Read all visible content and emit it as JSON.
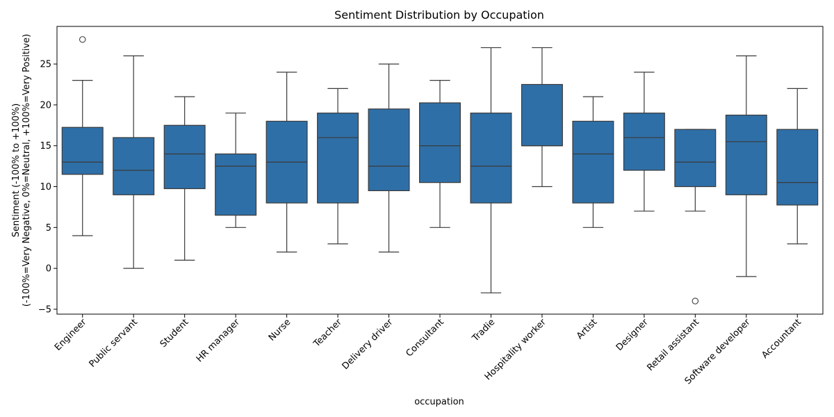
{
  "chart_data": {
    "type": "box",
    "title": "Sentiment Distribution by Occupation",
    "xlabel": "occupation",
    "ylabel_line1": "Sentiment (-100% to +100%)",
    "ylabel_line2": "(-100%=Very Negative, 0%=Neutral, +100%=Very Positive)",
    "ylim": [
      -5.6,
      29.6
    ],
    "yticks": [
      -5,
      0,
      5,
      10,
      15,
      20,
      25
    ],
    "grid": false,
    "box_color": "#2f6fa7",
    "line_color": "#3a3a3a",
    "categories": [
      "Engineer",
      "Public servant",
      "Student",
      "HR manager",
      "Nurse",
      "Teacher",
      "Delivery driver",
      "Consultant",
      "Tradie",
      "Hospitality worker",
      "Artist",
      "Designer",
      "Retail assistant",
      "Software developer",
      "Accountant"
    ],
    "boxes": [
      {
        "category": "Engineer",
        "whislo": 4,
        "q1": 11.5,
        "med": 13,
        "q3": 17.25,
        "whishi": 23,
        "fliers": [
          28
        ]
      },
      {
        "category": "Public servant",
        "whislo": 0,
        "q1": 9,
        "med": 12,
        "q3": 16,
        "whishi": 26,
        "fliers": []
      },
      {
        "category": "Student",
        "whislo": 1,
        "q1": 9.75,
        "med": 14,
        "q3": 17.5,
        "whishi": 21,
        "fliers": []
      },
      {
        "category": "HR manager",
        "whislo": 5,
        "q1": 6.5,
        "med": 12.5,
        "q3": 14,
        "whishi": 19,
        "fliers": []
      },
      {
        "category": "Nurse",
        "whislo": 2,
        "q1": 8,
        "med": 13,
        "q3": 18,
        "whishi": 24,
        "fliers": []
      },
      {
        "category": "Teacher",
        "whislo": 3,
        "q1": 8,
        "med": 16,
        "q3": 19,
        "whishi": 22,
        "fliers": []
      },
      {
        "category": "Delivery driver",
        "whislo": 2,
        "q1": 9.5,
        "med": 12.5,
        "q3": 19.5,
        "whishi": 25,
        "fliers": []
      },
      {
        "category": "Consultant",
        "whislo": 5,
        "q1": 10.5,
        "med": 15,
        "q3": 20.25,
        "whishi": 23,
        "fliers": []
      },
      {
        "category": "Tradie",
        "whislo": -3,
        "q1": 8,
        "med": 12.5,
        "q3": 19,
        "whishi": 27,
        "fliers": []
      },
      {
        "category": "Hospitality worker",
        "whislo": 10,
        "q1": 15,
        "med": 15,
        "q3": 22.5,
        "whishi": 27,
        "fliers": []
      },
      {
        "category": "Artist",
        "whislo": 5,
        "q1": 8,
        "med": 14,
        "q3": 18,
        "whishi": 21,
        "fliers": []
      },
      {
        "category": "Designer",
        "whislo": 7,
        "q1": 12,
        "med": 16,
        "q3": 19,
        "whishi": 24,
        "fliers": []
      },
      {
        "category": "Retail assistant",
        "whislo": 7,
        "q1": 10,
        "med": 13,
        "q3": 17,
        "whishi": 17,
        "fliers": [
          -4
        ]
      },
      {
        "category": "Software developer",
        "whislo": -1,
        "q1": 9,
        "med": 15.5,
        "q3": 18.75,
        "whishi": 26,
        "fliers": []
      },
      {
        "category": "Accountant",
        "whislo": 3,
        "q1": 7.75,
        "med": 10.5,
        "q3": 17,
        "whishi": 22,
        "fliers": []
      }
    ]
  }
}
